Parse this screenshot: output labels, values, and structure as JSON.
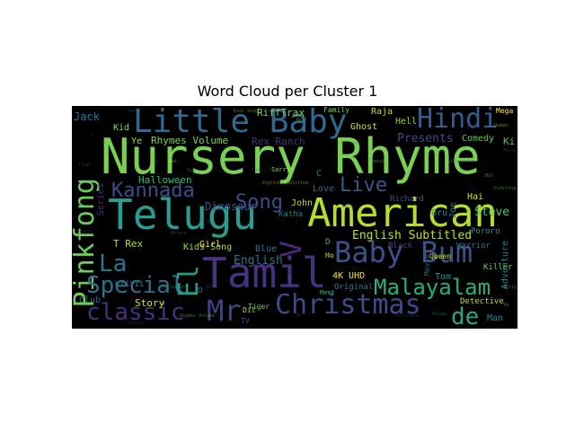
{
  "chart_data": {
    "type": "wordcloud",
    "title": "Word Cloud per Cluster 1",
    "background": "#000000",
    "colormap": "viridis",
    "words": [
      {
        "text": "Nursery Rhyme",
        "color": "#7ad151"
      },
      {
        "text": "Telugu",
        "color": "#2a9d8f"
      },
      {
        "text": "American",
        "color": "#b5de2b"
      },
      {
        "text": "Tamil",
        "color": "#46327e"
      },
      {
        "text": "Little Baby",
        "color": "#31688e"
      },
      {
        "text": "Baby Bum",
        "color": "#3b528b"
      },
      {
        "text": "Pinkfong",
        "color": "#6ccd5a"
      },
      {
        "text": "Hindi",
        "color": "#365c8d"
      },
      {
        "text": "Christmas",
        "color": "#3e4a89"
      },
      {
        "text": "Malayalam",
        "color": "#29af7f"
      },
      {
        "text": "classic",
        "color": "#472f7d"
      },
      {
        "text": "Special",
        "color": "#2e6f8e"
      },
      {
        "text": "Kannada",
        "color": "#3e4c8a"
      },
      {
        "text": "Song",
        "color": "#3d4e8a"
      },
      {
        "text": "Live",
        "color": "#38588c"
      },
      {
        "text": "Mr",
        "color": "#404387"
      },
      {
        "text": "La",
        "color": "#2c738e"
      },
      {
        "text": "El",
        "color": "#1f9e89"
      },
      {
        "text": "V",
        "color": "#472a7a"
      },
      {
        "text": "de",
        "color": "#22a884"
      },
      {
        "text": "English Subtitled",
        "color": "#bddf26"
      },
      {
        "text": "English",
        "color": "#2d708e"
      },
      {
        "text": "Rhymes Volume",
        "color": "#7ad151"
      },
      {
        "text": "Rex Ranch",
        "color": "#46337f"
      },
      {
        "text": "RiffTrax",
        "color": "#86d549"
      },
      {
        "text": "Jack",
        "color": "#2f6b8e"
      },
      {
        "text": "Presents",
        "color": "#3e4989"
      },
      {
        "text": "Comedy",
        "color": "#5ec962"
      },
      {
        "text": "Steve",
        "color": "#52c569"
      },
      {
        "text": "Halloween",
        "color": "#38b977"
      },
      {
        "text": "Dinosaur",
        "color": "#3b528b"
      },
      {
        "text": "T Rex",
        "color": "#b5de2b"
      },
      {
        "text": "Kids Song",
        "color": "#9fda3a"
      },
      {
        "text": "Story",
        "color": "#dde318"
      },
      {
        "text": "Club",
        "color": "#32648e"
      },
      {
        "text": "Girl",
        "color": "#fde725"
      },
      {
        "text": "Blue",
        "color": "#2c728e"
      },
      {
        "text": "Ghost",
        "color": "#d0e11c"
      },
      {
        "text": "Raja",
        "color": "#bddf26"
      },
      {
        "text": "Hell",
        "color": "#8bd646"
      },
      {
        "text": "Family",
        "color": "#73d056"
      },
      {
        "text": "Ki",
        "color": "#4ac16d"
      },
      {
        "text": "Mega",
        "color": "#fde725"
      },
      {
        "text": "Series",
        "color": "#443983"
      },
      {
        "text": "Love",
        "color": "#2f6c8e"
      },
      {
        "text": "John",
        "color": "#b5de2b"
      },
      {
        "text": "Richard",
        "color": "#3b528b"
      },
      {
        "text": "Oru",
        "color": "#238a8d"
      },
      {
        "text": "Hai",
        "color": "#d8e219"
      },
      {
        "text": "Katha",
        "color": "#2a788e"
      },
      {
        "text": "Tom",
        "color": "#1f9a8a"
      },
      {
        "text": "Killer",
        "color": "#6ccd5a"
      },
      {
        "text": "Warrior",
        "color": "#2a788e"
      },
      {
        "text": "Adventure",
        "color": "#287d8e"
      },
      {
        "text": "Detective",
        "color": "#c0df25"
      },
      {
        "text": "Man",
        "color": "#25848e"
      },
      {
        "text": "Original",
        "color": "#2a7b8e"
      },
      {
        "text": "Pororo",
        "color": "#20938c"
      },
      {
        "text": "4K UHD",
        "color": "#fde725"
      },
      {
        "text": "Black",
        "color": "#3d4e8a"
      },
      {
        "text": "Queen",
        "color": "#d2e21b"
      },
      {
        "text": "Tiger",
        "color": "#6ece58"
      },
      {
        "text": "TV",
        "color": "#3e4a89"
      },
      {
        "text": "Kid",
        "color": "#8bd646"
      },
      {
        "text": "Ye",
        "color": "#a8db34"
      },
      {
        "text": "KiiYii",
        "color": "#2a788e"
      },
      {
        "text": "Meet",
        "color": "#2db27d"
      },
      {
        "text": "Movie",
        "color": "#355f8d"
      },
      {
        "text": "Joe",
        "color": "#2c728e"
      },
      {
        "text": "Sorry",
        "color": "#9bd93c"
      },
      {
        "text": "Ho",
        "color": "#d8e219"
      },
      {
        "text": "D",
        "color": "#40bd72"
      },
      {
        "text": "C",
        "color": "#2a788e"
      },
      {
        "text": "O",
        "color": "#2e6e8e"
      },
      {
        "text": "Dil",
        "color": "#bddf26"
      }
    ]
  }
}
